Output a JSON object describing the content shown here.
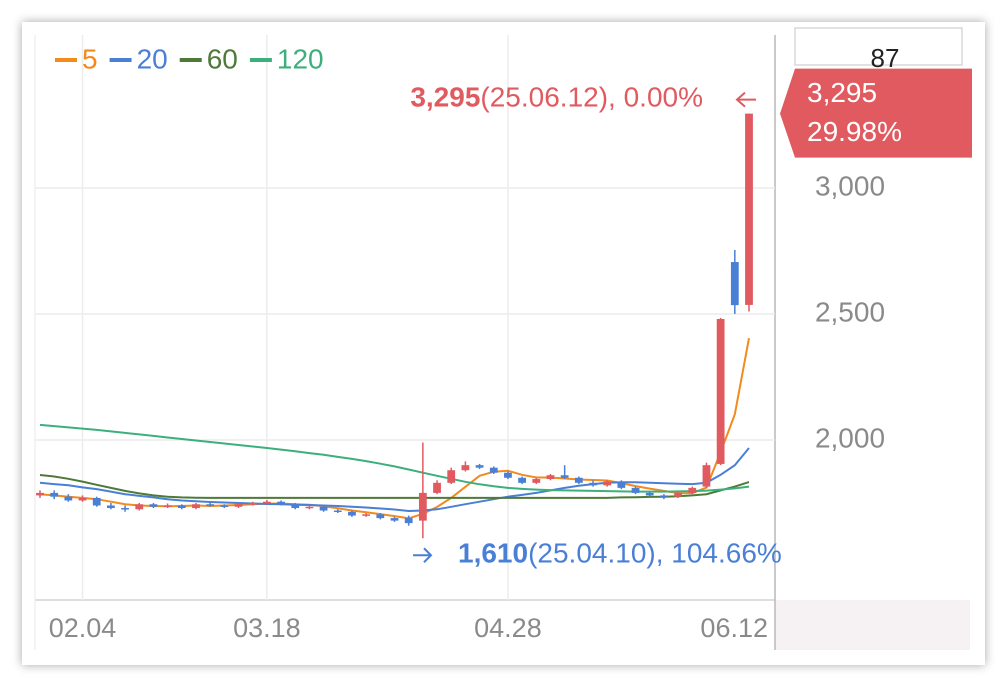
{
  "chart_data": {
    "type": "candlestick",
    "categories": [
      null,
      null,
      null,
      "02.04",
      null,
      null,
      null,
      null,
      null,
      null,
      null,
      null,
      null,
      null,
      null,
      null,
      "03.18",
      null,
      null,
      null,
      null,
      null,
      null,
      null,
      null,
      null,
      null,
      null,
      null,
      null,
      null,
      null,
      null,
      "04.28",
      null,
      null,
      null,
      null,
      null,
      null,
      null,
      null,
      null,
      null,
      null,
      null,
      null,
      null,
      null,
      null,
      "06.12"
    ],
    "open": [
      1780,
      1790,
      1775,
      1760,
      1770,
      1740,
      1730,
      1725,
      1745,
      1735,
      1740,
      1730,
      1745,
      1740,
      1735,
      1745,
      1750,
      1755,
      1745,
      1730,
      1735,
      1720,
      1715,
      1700,
      1705,
      1690,
      1690,
      1680,
      1790,
      1830,
      1880,
      1900,
      1890,
      1870,
      1850,
      1830,
      1845,
      1860,
      1850,
      1830,
      1820,
      1835,
      1810,
      1790,
      1780,
      1775,
      1790,
      1815,
      1905,
      2706,
      2536
    ],
    "high": [
      1800,
      1800,
      1785,
      1780,
      1775,
      1750,
      1740,
      1750,
      1750,
      1748,
      1745,
      1750,
      1750,
      1745,
      1750,
      1755,
      1762,
      1760,
      1750,
      1740,
      1740,
      1725,
      1720,
      1710,
      1710,
      1695,
      1700,
      1990,
      1840,
      1890,
      1915,
      1905,
      1895,
      1875,
      1855,
      1850,
      1865,
      1900,
      1855,
      1840,
      1840,
      1840,
      1815,
      1795,
      1785,
      1795,
      1815,
      1910,
      2484,
      2754,
      3295
    ],
    "low": [
      1770,
      1765,
      1755,
      1755,
      1735,
      1725,
      1715,
      1720,
      1730,
      1730,
      1725,
      1725,
      1735,
      1730,
      1730,
      1740,
      1745,
      1740,
      1725,
      1725,
      1715,
      1710,
      1695,
      1695,
      1685,
      1675,
      1660,
      1610,
      1785,
      1825,
      1875,
      1885,
      1865,
      1845,
      1825,
      1825,
      1840,
      1845,
      1825,
      1815,
      1815,
      1805,
      1785,
      1775,
      1765,
      1770,
      1785,
      1810,
      1900,
      2500,
      2510
    ],
    "close": [
      1790,
      1775,
      1760,
      1770,
      1740,
      1730,
      1725,
      1745,
      1735,
      1740,
      1730,
      1745,
      1740,
      1735,
      1745,
      1750,
      1755,
      1745,
      1730,
      1735,
      1720,
      1715,
      1700,
      1705,
      1690,
      1680,
      1670,
      1790,
      1830,
      1880,
      1900,
      1890,
      1870,
      1850,
      1830,
      1845,
      1860,
      1850,
      1830,
      1820,
      1835,
      1810,
      1790,
      1780,
      1775,
      1790,
      1810,
      1900,
      2480,
      2535,
      3295
    ],
    "up_color": "#e05a60",
    "down_color": "#4a7fd6",
    "series": [
      {
        "name": "5",
        "color": "#f28a1e",
        "values": [
          1785,
          1780,
          1775,
          1770,
          1765,
          1755,
          1745,
          1740,
          1738,
          1737,
          1738,
          1740,
          1738,
          1740,
          1742,
          1745,
          1747,
          1748,
          1745,
          1743,
          1737,
          1729,
          1720,
          1713,
          1706,
          1698,
          1689,
          1707,
          1734,
          1770,
          1814,
          1858,
          1874,
          1878,
          1862,
          1851,
          1851,
          1847,
          1843,
          1841,
          1839,
          1829,
          1817,
          1807,
          1798,
          1789,
          1789,
          1811,
          1951,
          2102,
          2404
        ]
      },
      {
        "name": "20",
        "color": "#4a7fd6",
        "values": [
          1830,
          1825,
          1820,
          1812,
          1805,
          1795,
          1785,
          1778,
          1772,
          1765,
          1760,
          1757,
          1754,
          1752,
          1750,
          1748,
          1746,
          1745,
          1743,
          1742,
          1740,
          1738,
          1735,
          1732,
          1728,
          1724,
          1718,
          1720,
          1725,
          1735,
          1745,
          1755,
          1765,
          1775,
          1782,
          1790,
          1800,
          1810,
          1818,
          1825,
          1830,
          1832,
          1832,
          1830,
          1828,
          1826,
          1825,
          1830,
          1862,
          1900,
          1968
        ]
      },
      {
        "name": "60",
        "color": "#4e7a38",
        "values": [
          1861,
          1855,
          1846,
          1835,
          1822,
          1810,
          1798,
          1788,
          1780,
          1775,
          1772,
          1771,
          1770,
          1770,
          1770,
          1770,
          1770,
          1770,
          1770,
          1770,
          1770,
          1770,
          1770,
          1770,
          1770,
          1770,
          1770,
          1770,
          1770,
          1770,
          1770,
          1770,
          1770,
          1770,
          1770,
          1770,
          1770,
          1770,
          1770,
          1770,
          1770,
          1772,
          1773,
          1774,
          1775,
          1777,
          1780,
          1785,
          1800,
          1815,
          1833
        ]
      },
      {
        "name": "120",
        "color": "#3daf7d",
        "values": [
          2060,
          2055,
          2050,
          2045,
          2040,
          2034,
          2028,
          2022,
          2016,
          2010,
          2004,
          1998,
          1992,
          1986,
          1980,
          1974,
          1968,
          1962,
          1955,
          1948,
          1941,
          1933,
          1925,
          1916,
          1906,
          1895,
          1883,
          1870,
          1858,
          1846,
          1834,
          1824,
          1816,
          1810,
          1806,
          1803,
          1801,
          1800,
          1799,
          1798,
          1797,
          1796,
          1795,
          1795,
          1795,
          1796,
          1797,
          1799,
          1803,
          1808,
          1815
        ]
      }
    ],
    "ylim": [
      1365,
      3607
    ],
    "yticks": [
      {
        "value": 2000,
        "label": "2,000"
      },
      {
        "value": 2500,
        "label": "2,500"
      },
      {
        "value": 3000,
        "label": "3,000"
      }
    ],
    "grid": true,
    "max_annotation": {
      "value": 3295,
      "label": "3,295",
      "detail": "(25.06.12), 0.00%"
    },
    "min_annotation": {
      "value": 1610,
      "label": "1,610",
      "detail": "(25.04.10), 104.66%"
    },
    "price_tag": {
      "value": 3295,
      "label": "3,295",
      "change": "29.98%"
    },
    "top_box_label": "87"
  }
}
